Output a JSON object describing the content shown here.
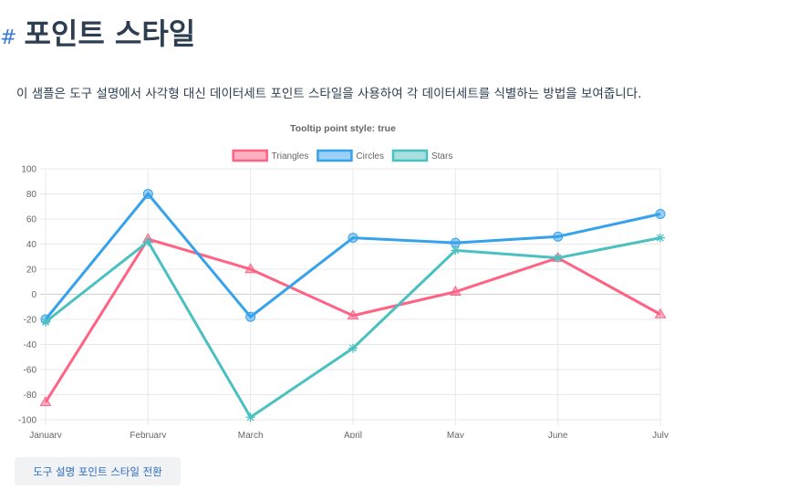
{
  "page": {
    "hash": "#",
    "title": "포인트 스타일",
    "description": "이 샘플은 도구 설명에서 사각형 대신 데이터세트 포인트 스타일을 사용하여 각 데이터세트를 식별하는 방법을 보여줍니다.",
    "toggle_button": "도구 설명 포인트 스타일 전환"
  },
  "chart_data": {
    "type": "line",
    "title": "Tooltip point style: true",
    "categories": [
      "January",
      "February",
      "March",
      "April",
      "May",
      "June",
      "July"
    ],
    "ylim": [
      -100,
      100
    ],
    "yticks": [
      100,
      80,
      60,
      40,
      20,
      0,
      -20,
      -40,
      -60,
      -80,
      -100
    ],
    "grid": true,
    "legend_position": "top",
    "series": [
      {
        "name": "Triangles",
        "color": "#ff6384",
        "fill": "rgba(255,99,132,0.5)",
        "marker": "triangle",
        "values": [
          -86,
          44,
          20,
          -17,
          2,
          29,
          -16
        ]
      },
      {
        "name": "Circles",
        "color": "#36a2eb",
        "fill": "rgba(54,162,235,0.5)",
        "marker": "circle",
        "values": [
          -20,
          80,
          -18,
          45,
          41,
          46,
          64
        ]
      },
      {
        "name": "Stars",
        "color": "#4bc0c0",
        "fill": "rgba(75,192,192,0.5)",
        "marker": "star",
        "values": [
          -22,
          42,
          -98,
          -43,
          35,
          29,
          45
        ]
      }
    ]
  }
}
